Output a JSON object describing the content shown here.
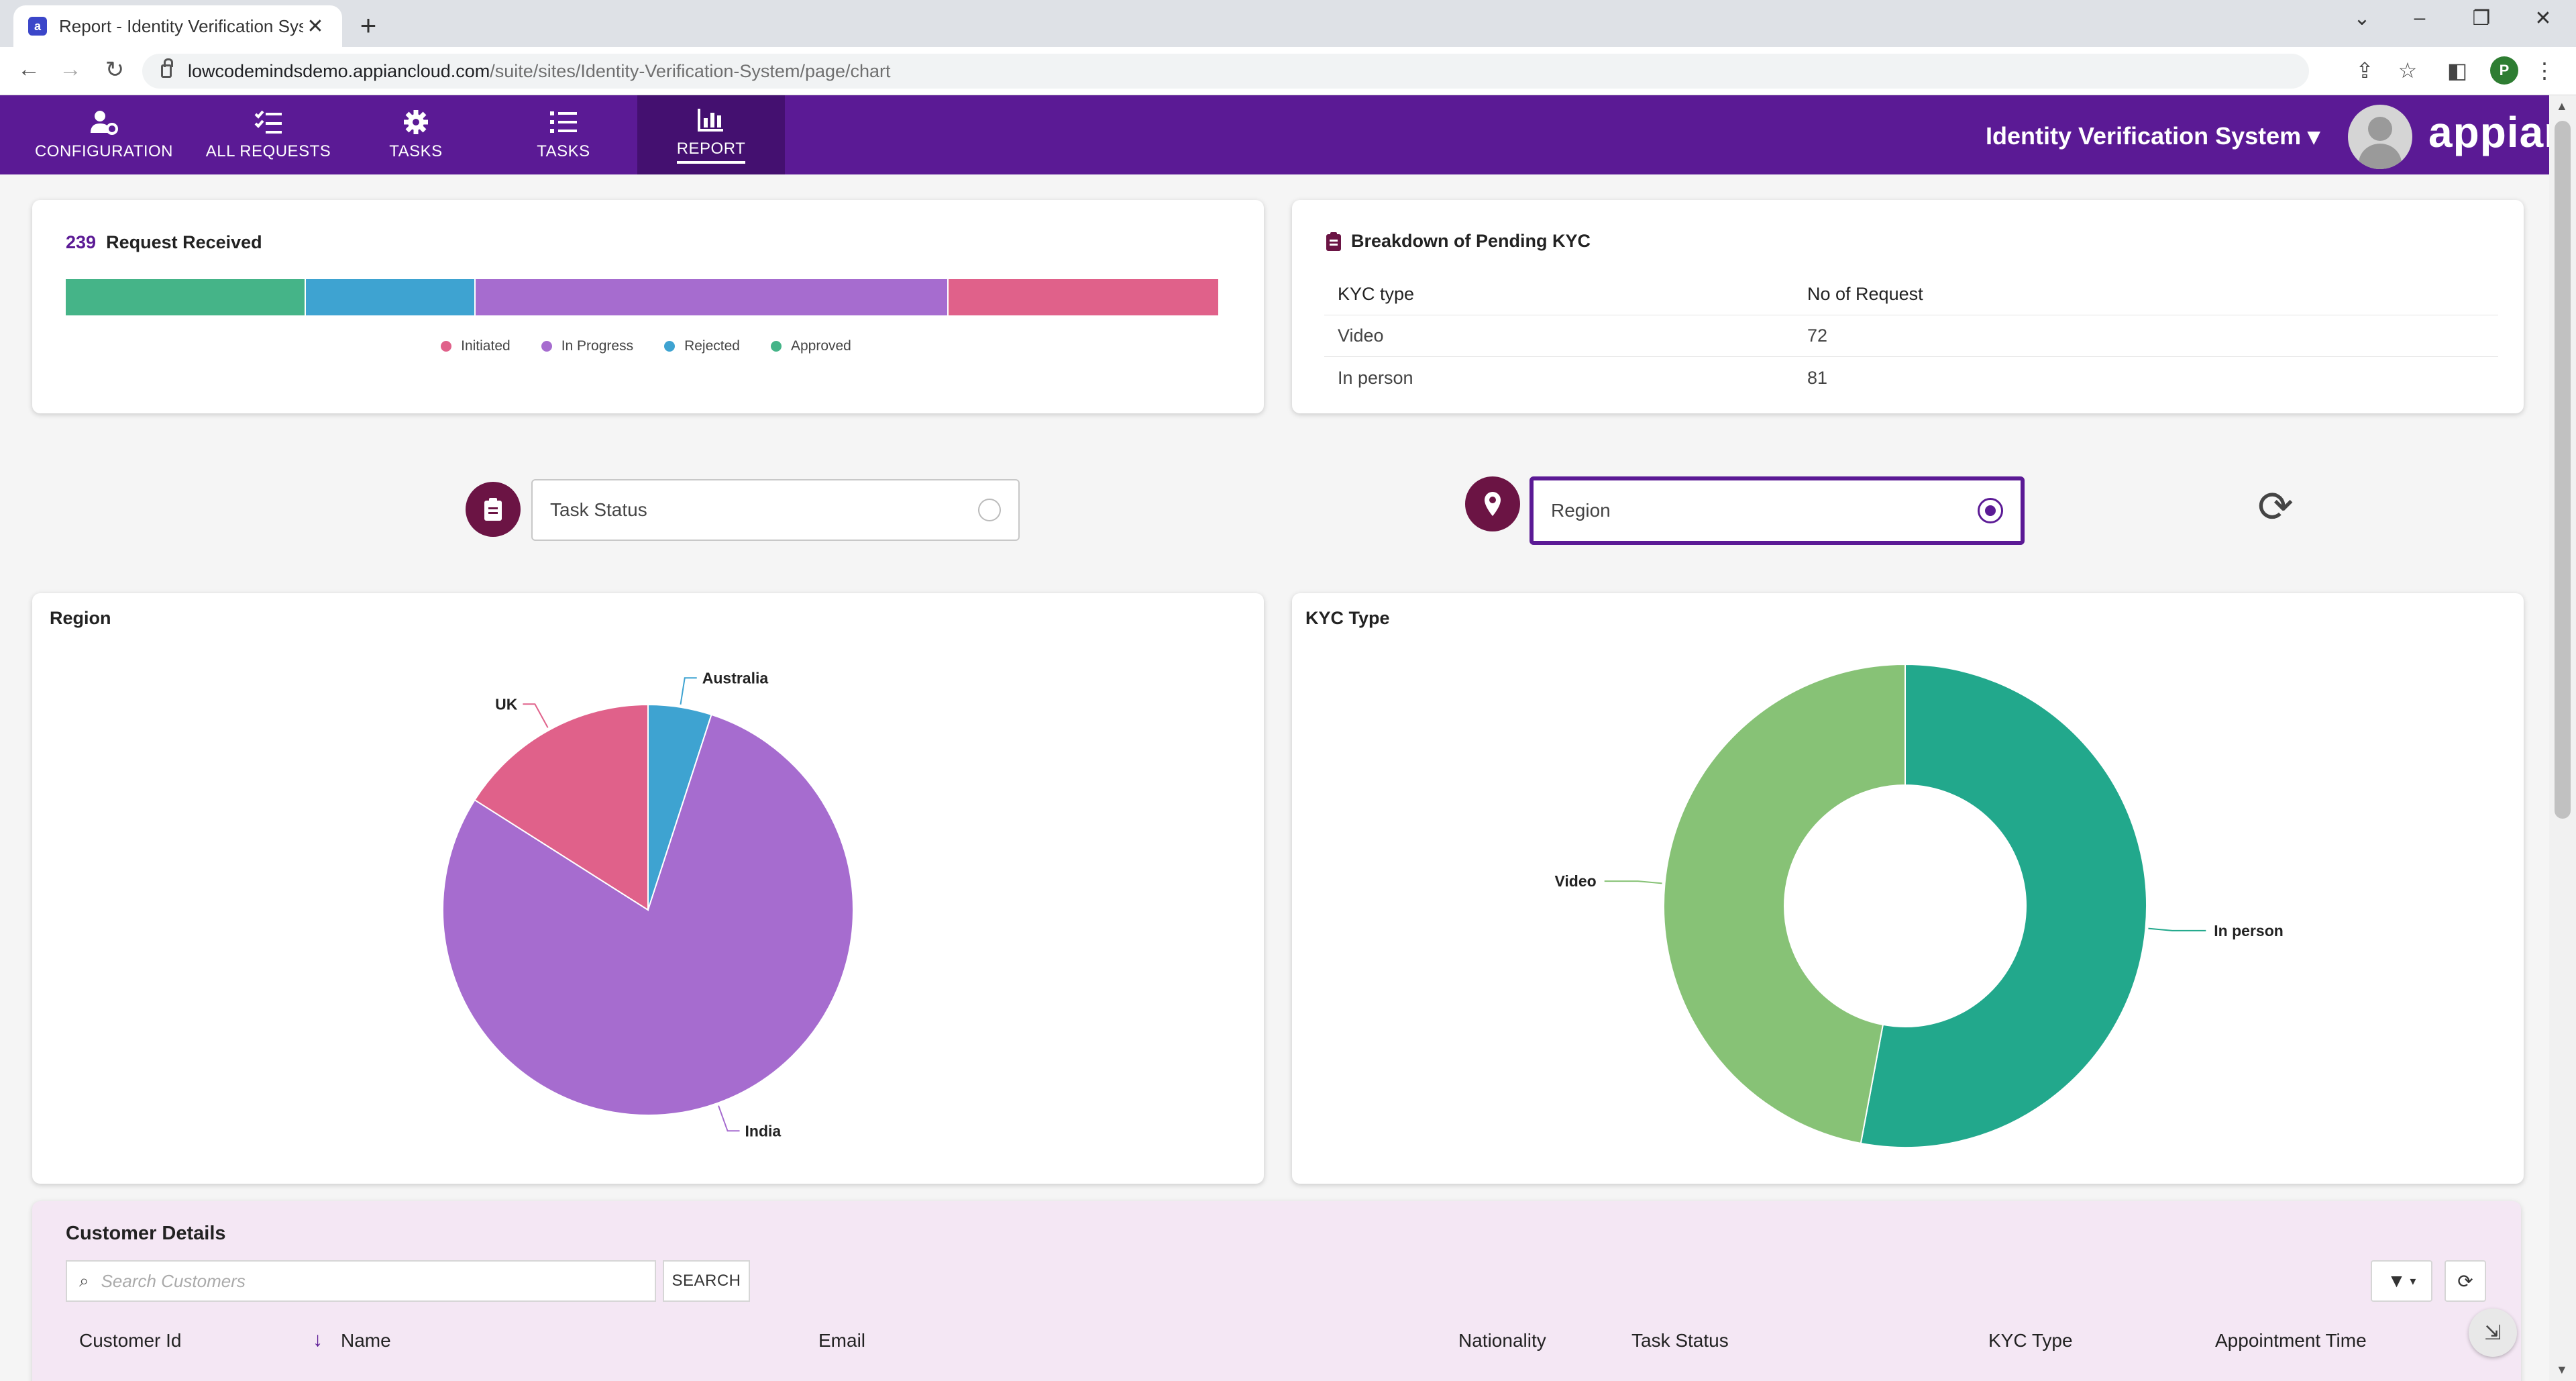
{
  "browser": {
    "tab_title": "Report - Identity Verification Sys",
    "favicon": "a",
    "url_host": "lowcodemindsdemo.appiancloud.com",
    "url_path": "/suite/sites/Identity-Verification-System/page/chart",
    "profile_initial": "P"
  },
  "nav": {
    "items": [
      {
        "label": "CONFIGURATION",
        "icon": "user-gear-icon"
      },
      {
        "label": "ALL REQUESTS",
        "icon": "checklist-icon"
      },
      {
        "label": "TASKS",
        "icon": "gear-icon"
      },
      {
        "label": "TASKS",
        "icon": "list-icon"
      },
      {
        "label": "REPORT",
        "icon": "bar-chart-icon"
      }
    ],
    "active_index": 4,
    "site_name": "Identity Verification System",
    "site_caret": "▾",
    "logo_text": "appian"
  },
  "colors": {
    "header": "#5b1a95",
    "initiated": "#e0618a",
    "in_progress": "#a66ccf",
    "rejected": "#3ea3d1",
    "approved": "#45b488",
    "uk": "#e0618a",
    "australia": "#3ea3d1",
    "india": "#a66ccf",
    "in_person": "#22a88c",
    "video": "#87c276"
  },
  "requests": {
    "count": "239",
    "title": "Request Received",
    "legend": [
      "Initiated",
      "In Progress",
      "Rejected",
      "Approved"
    ],
    "segments_pct": [
      {
        "name": "Approved",
        "pct": 20.8
      },
      {
        "name": "Rejected",
        "pct": 14.7
      },
      {
        "name": "In Progress",
        "pct": 41.0
      },
      {
        "name": "Initiated",
        "pct": 23.5
      }
    ]
  },
  "kyc_breakdown": {
    "title": "Breakdown of Pending KYC",
    "headers": [
      "KYC type",
      "No of Request"
    ],
    "rows": [
      {
        "type": "Video",
        "count": "72"
      },
      {
        "type": "In person",
        "count": "81"
      }
    ]
  },
  "filters": {
    "task_status": {
      "value": "Task Status"
    },
    "region": {
      "value": "Region"
    }
  },
  "chart_data": [
    {
      "type": "pie",
      "title": "Region",
      "categories": [
        "Australia",
        "India",
        "UK"
      ],
      "values": [
        5,
        79,
        16
      ]
    },
    {
      "type": "pie",
      "subtype": "donut",
      "title": "KYC Type",
      "categories": [
        "In person",
        "Video"
      ],
      "values": [
        81,
        72
      ]
    }
  ],
  "customer_grid": {
    "title": "Customer Details",
    "search_placeholder": "Search Customers",
    "search_button": "SEARCH",
    "columns": [
      "Customer Id",
      "Name",
      "Email",
      "Nationality",
      "Task Status",
      "KYC Type",
      "Appointment Time"
    ],
    "sort_indicator": "↓"
  }
}
